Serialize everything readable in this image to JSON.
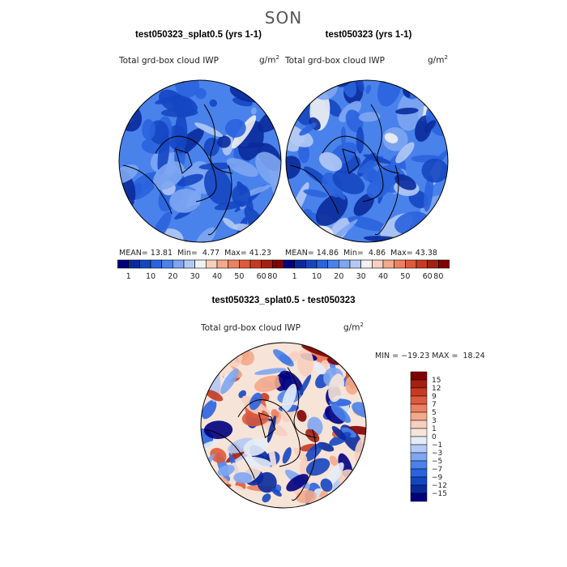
{
  "season": "SON",
  "colors": {
    "abs_levels": [
      "#00007f",
      "#0a2a9c",
      "#1546c2",
      "#2a63de",
      "#4a82ec",
      "#7ea6f2",
      "#b3c9f5",
      "#f1f1f1",
      "#f7cfbf",
      "#f4a98a",
      "#ec8060",
      "#de5a3c",
      "#c73a22",
      "#a5200f",
      "#800000"
    ],
    "diff_levels": [
      "#00007f",
      "#0a2a9c",
      "#1546c2",
      "#2a63de",
      "#4a82ec",
      "#7ea6f2",
      "#b3c9f5",
      "#e4ecf8",
      "#f7e4d8",
      "#f7cfbf",
      "#f4a98a",
      "#ec8060",
      "#de5a3c",
      "#c73a22",
      "#a5200f",
      "#800000"
    ]
  },
  "panels": {
    "left": {
      "title": "test050323_splat0.5 (yrs 1-1)",
      "variable": "Total grd-box cloud IWP",
      "units": "g/m",
      "units_exp": "2",
      "mean_label": "MEAN=",
      "mean": "13.81",
      "min_label": "Min=",
      "min": "4.77",
      "max_label": "Max=",
      "max": "41.23"
    },
    "right": {
      "title": "test050323 (yrs 1-1)",
      "variable": "Total grd-box cloud IWP",
      "units": "g/m",
      "units_exp": "2",
      "mean_label": "MEAN=",
      "mean": "14.86",
      "min_label": "Min=",
      "min": "4.86",
      "max_label": "Max=",
      "max": "43.38"
    },
    "diff": {
      "title": "test050323_splat0.5 - test050323",
      "variable": "Total grd-box cloud IWP",
      "units": "g/m",
      "units_exp": "2",
      "minmax_text": "MIN = −19.23 MAX =  18.24"
    }
  },
  "chart_data": [
    {
      "type": "heatmap",
      "projection": "north-polar-stereographic",
      "title": "test050323_splat0.5 (yrs 1-1)",
      "field": "Total grd-box cloud IWP",
      "units": "g/m2",
      "mean": 13.81,
      "min": 4.77,
      "max": 41.23,
      "colorbar_ticks": [
        "1",
        "10",
        "20",
        "30",
        "40",
        "50",
        "60",
        "80"
      ]
    },
    {
      "type": "heatmap",
      "projection": "north-polar-stereographic",
      "title": "test050323 (yrs 1-1)",
      "field": "Total grd-box cloud IWP",
      "units": "g/m2",
      "mean": 14.86,
      "min": 4.86,
      "max": 43.38,
      "colorbar_ticks": [
        "1",
        "10",
        "20",
        "30",
        "40",
        "50",
        "60",
        "80"
      ]
    },
    {
      "type": "heatmap",
      "projection": "north-polar-stereographic",
      "title": "test050323_splat0.5 - test050323",
      "field": "Total grd-box cloud IWP",
      "units": "g/m2",
      "min": -19.23,
      "max": 18.24,
      "colorbar_ticks": [
        "15",
        "12",
        "9",
        "7",
        "5",
        "3",
        "1",
        "0",
        "−1",
        "−3",
        "−5",
        "−7",
        "−9",
        "−12",
        "−15"
      ]
    }
  ]
}
